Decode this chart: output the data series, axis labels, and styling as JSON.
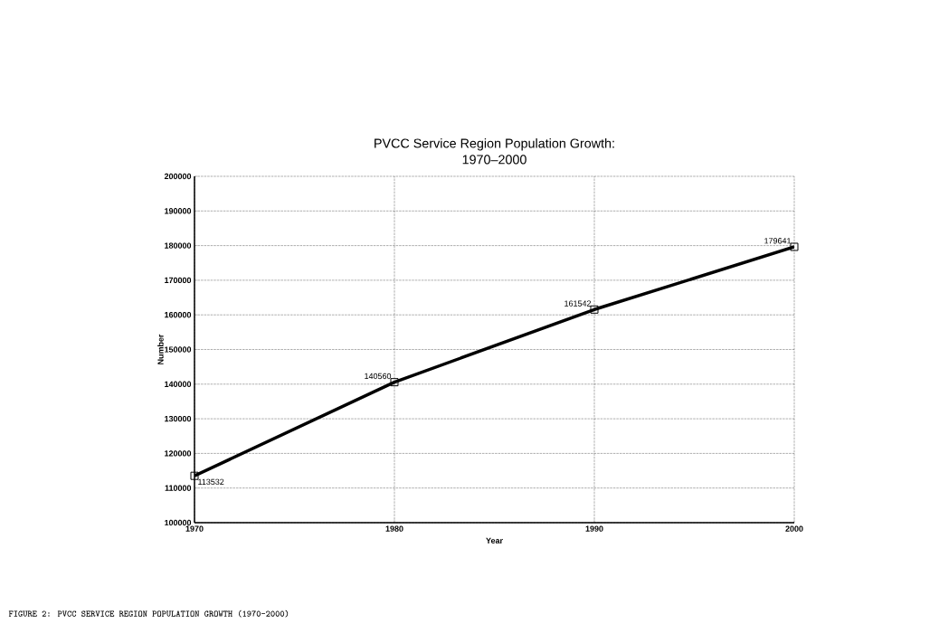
{
  "chart_data": {
    "type": "line",
    "title": "PVCC Service Region Population Growth:\n1970–2000",
    "xlabel": "Year",
    "ylabel": "Number",
    "x": [
      1970,
      1980,
      1990,
      2000
    ],
    "series": [
      {
        "color": "#000000",
        "values": [
          113532,
          140560,
          161542,
          179641
        ]
      }
    ],
    "xlim": [
      1970,
      2000
    ],
    "xticks": [
      1970,
      1980,
      1990,
      2000
    ],
    "ylim": [
      100000,
      200000
    ],
    "yticks": [
      100000,
      110000,
      120000,
      130000,
      140000,
      150000,
      160000,
      170000,
      180000,
      190000,
      200000
    ],
    "grid": true,
    "line_style": "solid",
    "marker": "square",
    "data_labels": true,
    "annotations": [
      "FIGURE 2: PVCC SERVICE REGION POPULATION GROWTH (1970-2000)"
    ]
  }
}
